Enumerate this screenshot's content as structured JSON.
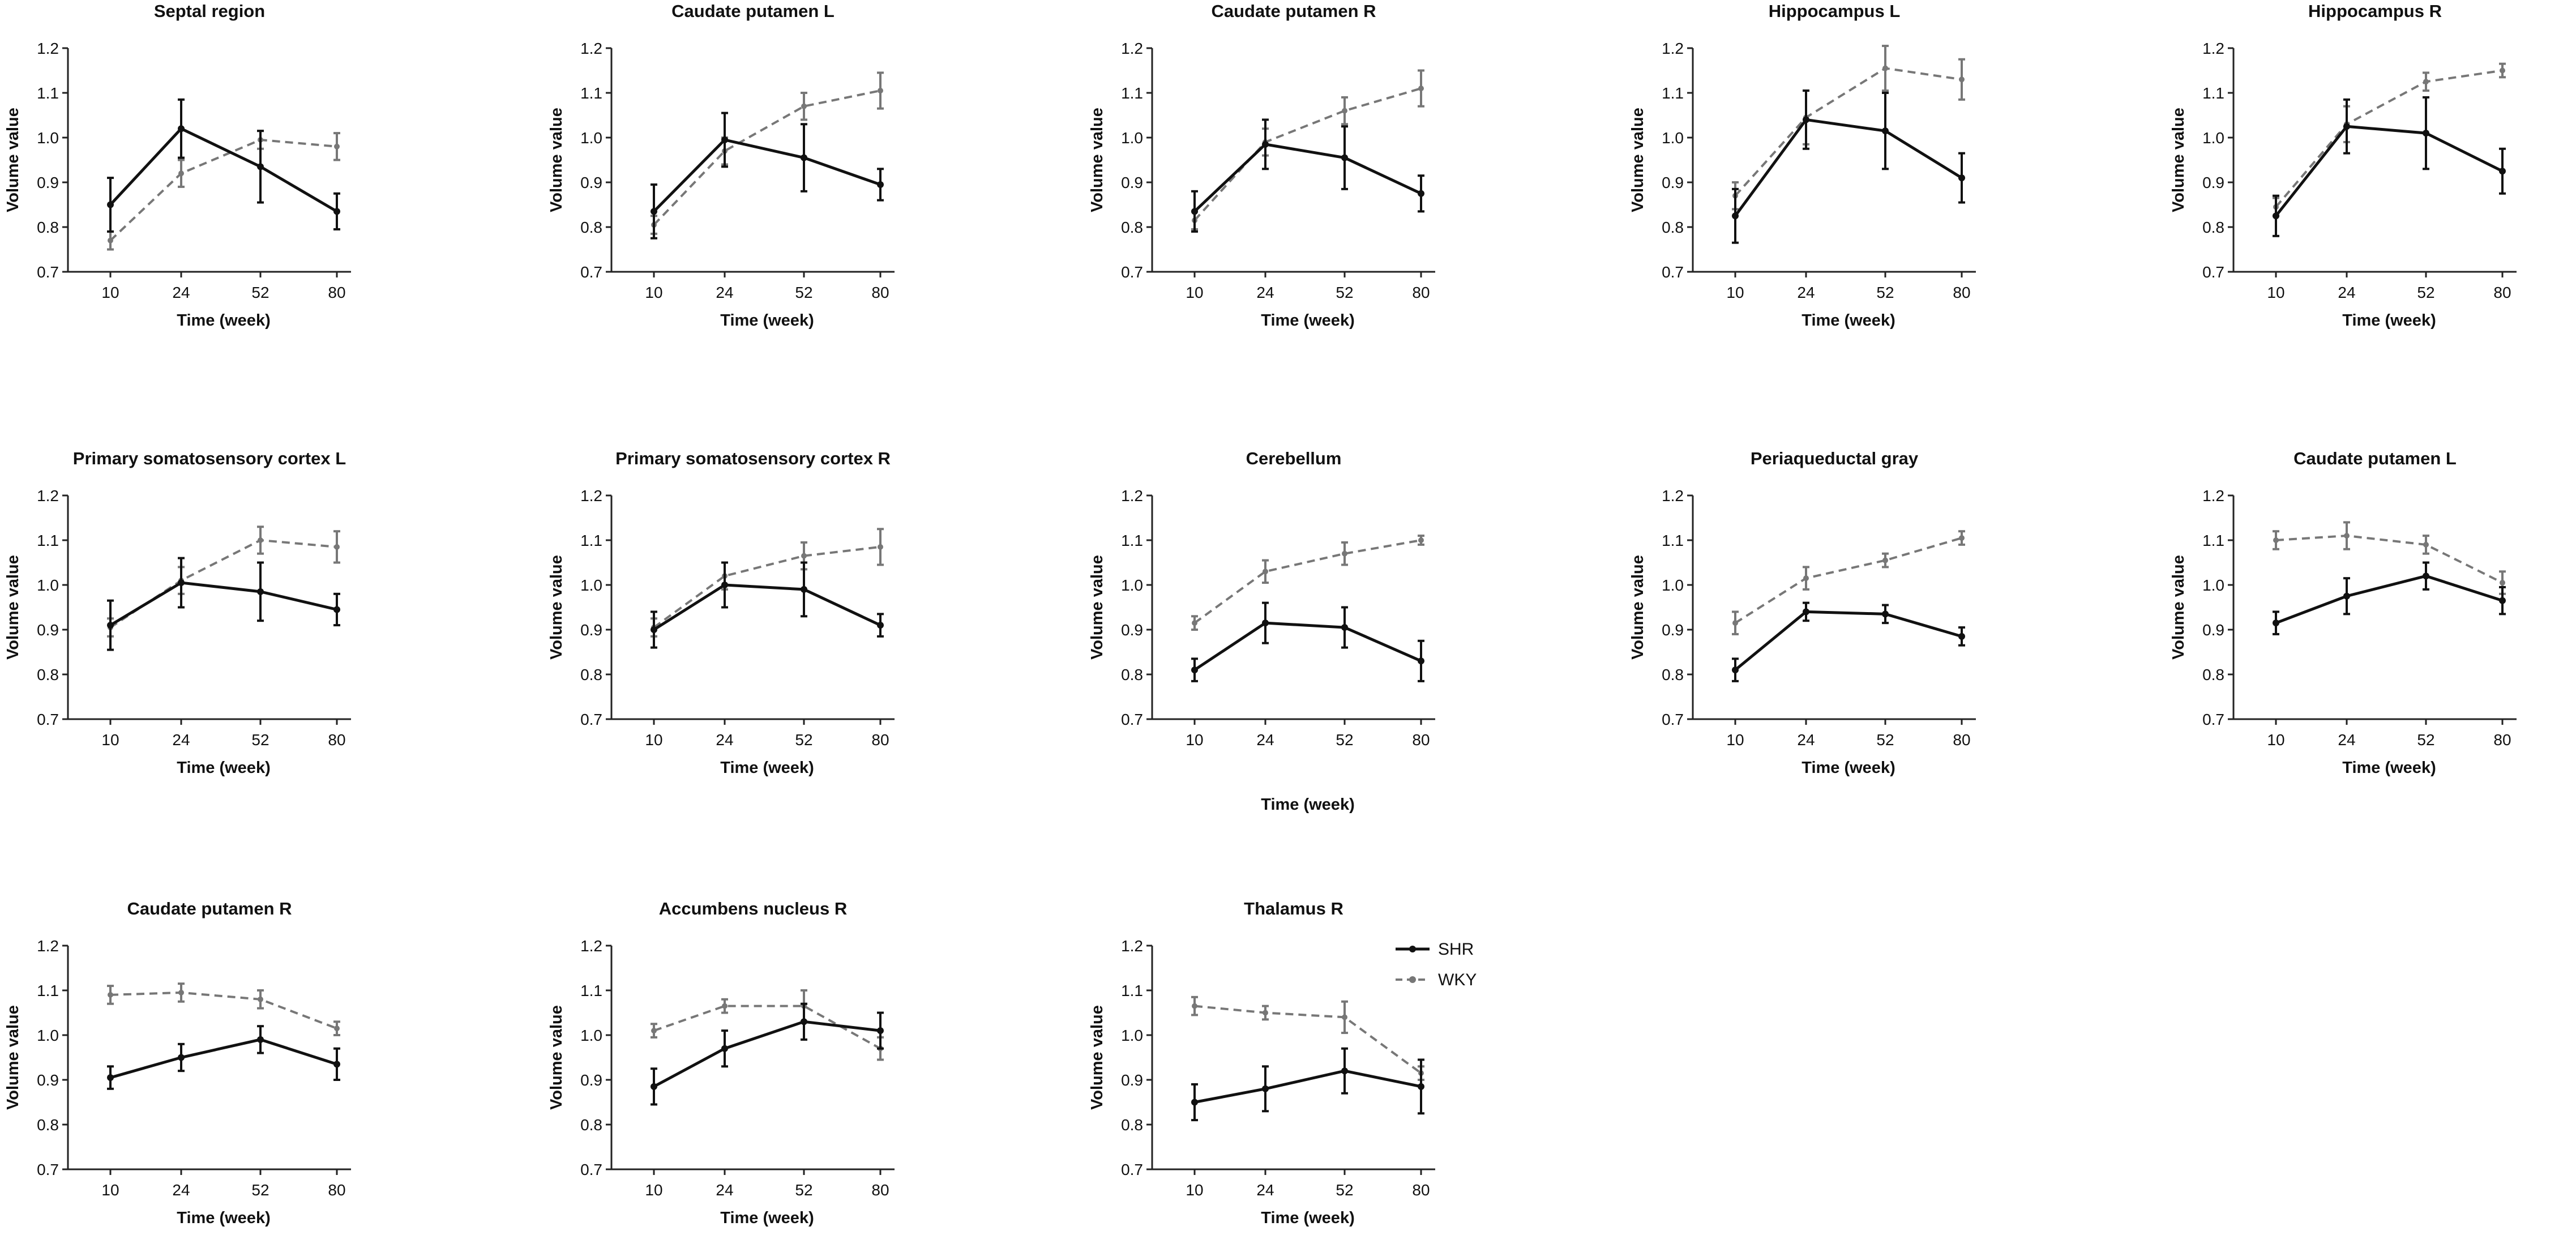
{
  "legend": [
    {
      "name": "SHR",
      "color": "#111111",
      "style": "solid"
    },
    {
      "name": "WKY",
      "color": "#777777",
      "style": "dashed"
    }
  ],
  "chart_data": [
    {
      "type": "line",
      "title": "Septal region",
      "xlabel": "Time (week)",
      "ylabel": "Volume value",
      "categories": [
        "10",
        "24",
        "52",
        "80"
      ],
      "ylim": [
        0.7,
        1.2
      ],
      "yticks": [
        "0.7",
        "0.8",
        "0.9",
        "1.0",
        "1.1",
        "1.2"
      ],
      "series": [
        {
          "name": "SHR",
          "values": [
            0.85,
            1.02,
            0.935,
            0.835
          ],
          "errors": [
            0.06,
            0.065,
            0.08,
            0.04
          ]
        },
        {
          "name": "WKY",
          "values": [
            0.77,
            0.92,
            0.995,
            0.98
          ],
          "errors": [
            0.02,
            0.03,
            0.02,
            0.03
          ]
        }
      ]
    },
    {
      "type": "line",
      "title": "Caudate putamen L",
      "xlabel": "Time (week)",
      "ylabel": "Volume value",
      "categories": [
        "10",
        "24",
        "52",
        "80"
      ],
      "ylim": [
        0.7,
        1.2
      ],
      "yticks": [
        "0.7",
        "0.8",
        "0.9",
        "1.0",
        "1.1",
        "1.2"
      ],
      "series": [
        {
          "name": "SHR",
          "values": [
            0.835,
            0.995,
            0.955,
            0.895
          ],
          "errors": [
            0.06,
            0.06,
            0.075,
            0.035
          ]
        },
        {
          "name": "WKY",
          "values": [
            0.805,
            0.97,
            1.07,
            1.105
          ],
          "errors": [
            0.02,
            0.03,
            0.03,
            0.04
          ]
        }
      ]
    },
    {
      "type": "line",
      "title": "Caudate putamen R",
      "xlabel": "Time (week)",
      "ylabel": "Volume value",
      "categories": [
        "10",
        "24",
        "52",
        "80"
      ],
      "ylim": [
        0.7,
        1.2
      ],
      "yticks": [
        "0.7",
        "0.8",
        "0.9",
        "1.0",
        "1.1",
        "1.2"
      ],
      "series": [
        {
          "name": "SHR",
          "values": [
            0.835,
            0.985,
            0.955,
            0.875
          ],
          "errors": [
            0.045,
            0.055,
            0.07,
            0.04
          ]
        },
        {
          "name": "WKY",
          "values": [
            0.815,
            0.99,
            1.06,
            1.11
          ],
          "errors": [
            0.02,
            0.03,
            0.03,
            0.04
          ]
        }
      ]
    },
    {
      "type": "line",
      "title": "Hippocampus L",
      "xlabel": "Time (week)",
      "ylabel": "Volume value",
      "categories": [
        "10",
        "24",
        "52",
        "80"
      ],
      "ylim": [
        0.7,
        1.2
      ],
      "yticks": [
        "0.7",
        "0.8",
        "0.9",
        "1.0",
        "1.1",
        "1.2"
      ],
      "series": [
        {
          "name": "SHR",
          "values": [
            0.825,
            1.04,
            1.015,
            0.91
          ],
          "errors": [
            0.06,
            0.065,
            0.085,
            0.055
          ]
        },
        {
          "name": "WKY",
          "values": [
            0.87,
            1.045,
            1.155,
            1.13
          ],
          "errors": [
            0.03,
            0.06,
            0.05,
            0.045
          ]
        }
      ]
    },
    {
      "type": "line",
      "title": "Hippocampus R",
      "xlabel": "Time (week)",
      "ylabel": "Volume value",
      "categories": [
        "10",
        "24",
        "52",
        "80"
      ],
      "ylim": [
        0.7,
        1.2
      ],
      "yticks": [
        "0.7",
        "0.8",
        "0.9",
        "1.0",
        "1.1",
        "1.2"
      ],
      "series": [
        {
          "name": "SHR",
          "values": [
            0.825,
            1.025,
            1.01,
            0.925
          ],
          "errors": [
            0.045,
            0.06,
            0.08,
            0.05
          ]
        },
        {
          "name": "WKY",
          "values": [
            0.845,
            1.03,
            1.125,
            1.15
          ],
          "errors": [
            0.02,
            0.04,
            0.02,
            0.015
          ]
        }
      ]
    },
    {
      "type": "line",
      "title": "Primary somatosensory cortex L",
      "xlabel": "Time (week)",
      "ylabel": "Volume value",
      "categories": [
        "10",
        "24",
        "52",
        "80"
      ],
      "ylim": [
        0.7,
        1.2
      ],
      "yticks": [
        "0.7",
        "0.8",
        "0.9",
        "1.0",
        "1.1",
        "1.2"
      ],
      "series": [
        {
          "name": "SHR",
          "values": [
            0.91,
            1.005,
            0.985,
            0.945
          ],
          "errors": [
            0.055,
            0.055,
            0.065,
            0.035
          ]
        },
        {
          "name": "WKY",
          "values": [
            0.905,
            1.01,
            1.1,
            1.085
          ],
          "errors": [
            0.02,
            0.03,
            0.03,
            0.035
          ]
        }
      ]
    },
    {
      "type": "line",
      "title": "Primary somatosensory cortex R",
      "xlabel": "Time (week)",
      "ylabel": "Volume value",
      "categories": [
        "10",
        "24",
        "52",
        "80"
      ],
      "ylim": [
        0.7,
        1.2
      ],
      "yticks": [
        "0.7",
        "0.8",
        "0.9",
        "1.0",
        "1.1",
        "1.2"
      ],
      "series": [
        {
          "name": "SHR",
          "values": [
            0.9,
            1.0,
            0.99,
            0.91
          ],
          "errors": [
            0.04,
            0.05,
            0.06,
            0.025
          ]
        },
        {
          "name": "WKY",
          "values": [
            0.905,
            1.02,
            1.065,
            1.085
          ],
          "errors": [
            0.02,
            0.03,
            0.03,
            0.04
          ]
        }
      ]
    },
    {
      "type": "line",
      "title": "Cerebellum",
      "xlabel": "Time (week)",
      "ylabel": "Volume value",
      "categories": [
        "10",
        "24",
        "52",
        "80"
      ],
      "ylim": [
        0.7,
        1.2
      ],
      "yticks": [
        "0.7",
        "0.8",
        "0.9",
        "1.0",
        "1.1",
        "1.2"
      ],
      "series": [
        {
          "name": "SHR",
          "values": [
            0.81,
            0.915,
            0.905,
            0.83
          ],
          "errors": [
            0.025,
            0.045,
            0.045,
            0.045
          ]
        },
        {
          "name": "WKY",
          "values": [
            0.915,
            1.03,
            1.07,
            1.1
          ],
          "errors": [
            0.015,
            0.025,
            0.025,
            0.01
          ]
        }
      ]
    },
    {
      "type": "line",
      "title": "Periaqueductal gray",
      "xlabel": "Time (week)",
      "ylabel": "Volume value",
      "categories": [
        "10",
        "24",
        "52",
        "80"
      ],
      "ylim": [
        0.7,
        1.2
      ],
      "yticks": [
        "0.7",
        "0.8",
        "0.9",
        "1.0",
        "1.1",
        "1.2"
      ],
      "series": [
        {
          "name": "SHR",
          "values": [
            0.81,
            0.94,
            0.935,
            0.885
          ],
          "errors": [
            0.025,
            0.02,
            0.02,
            0.02
          ]
        },
        {
          "name": "WKY",
          "values": [
            0.915,
            1.015,
            1.055,
            1.105
          ],
          "errors": [
            0.025,
            0.025,
            0.015,
            0.015
          ]
        }
      ]
    },
    {
      "type": "line",
      "title": "Caudate putamen L",
      "xlabel": "Time (week)",
      "ylabel": "Volume value",
      "categories": [
        "10",
        "24",
        "52",
        "80"
      ],
      "ylim": [
        0.7,
        1.2
      ],
      "yticks": [
        "0.7",
        "0.8",
        "0.9",
        "1.0",
        "1.1",
        "1.2"
      ],
      "series": [
        {
          "name": "SHR",
          "values": [
            0.915,
            0.975,
            1.02,
            0.965
          ],
          "errors": [
            0.025,
            0.04,
            0.03,
            0.03
          ]
        },
        {
          "name": "WKY",
          "values": [
            1.1,
            1.11,
            1.09,
            1.005
          ],
          "errors": [
            0.02,
            0.03,
            0.02,
            0.025
          ]
        }
      ]
    },
    {
      "type": "line",
      "title": "Caudate putamen R",
      "xlabel": "Time (week)",
      "ylabel": "Volume value",
      "categories": [
        "10",
        "24",
        "52",
        "80"
      ],
      "ylim": [
        0.7,
        1.2
      ],
      "yticks": [
        "0.7",
        "0.8",
        "0.9",
        "1.0",
        "1.1",
        "1.2"
      ],
      "series": [
        {
          "name": "SHR",
          "values": [
            0.905,
            0.95,
            0.99,
            0.935
          ],
          "errors": [
            0.025,
            0.03,
            0.03,
            0.035
          ]
        },
        {
          "name": "WKY",
          "values": [
            1.09,
            1.095,
            1.08,
            1.015
          ],
          "errors": [
            0.02,
            0.02,
            0.02,
            0.015
          ]
        }
      ]
    },
    {
      "type": "line",
      "title": "Accumbens nucleus R",
      "xlabel": "Time (week)",
      "ylabel": "Volume value",
      "categories": [
        "10",
        "24",
        "52",
        "80"
      ],
      "ylim": [
        0.7,
        1.2
      ],
      "yticks": [
        "0.7",
        "0.8",
        "0.9",
        "1.0",
        "1.1",
        "1.2"
      ],
      "series": [
        {
          "name": "SHR",
          "values": [
            0.885,
            0.97,
            1.03,
            1.01
          ],
          "errors": [
            0.04,
            0.04,
            0.04,
            0.04
          ]
        },
        {
          "name": "WKY",
          "values": [
            1.01,
            1.065,
            1.065,
            0.97
          ],
          "errors": [
            0.015,
            0.015,
            0.035,
            0.025
          ]
        }
      ]
    },
    {
      "type": "line",
      "title": "Thalamus R",
      "xlabel": "Time (week)",
      "ylabel": "Volume value",
      "categories": [
        "10",
        "24",
        "52",
        "80"
      ],
      "ylim": [
        0.7,
        1.2
      ],
      "yticks": [
        "0.7",
        "0.8",
        "0.9",
        "1.0",
        "1.1",
        "1.2"
      ],
      "series": [
        {
          "name": "SHR",
          "values": [
            0.85,
            0.88,
            0.92,
            0.885
          ],
          "errors": [
            0.04,
            0.05,
            0.05,
            0.06
          ]
        },
        {
          "name": "WKY",
          "values": [
            1.065,
            1.05,
            1.04,
            0.915
          ],
          "errors": [
            0.02,
            0.015,
            0.035,
            0.015
          ]
        }
      ]
    }
  ]
}
